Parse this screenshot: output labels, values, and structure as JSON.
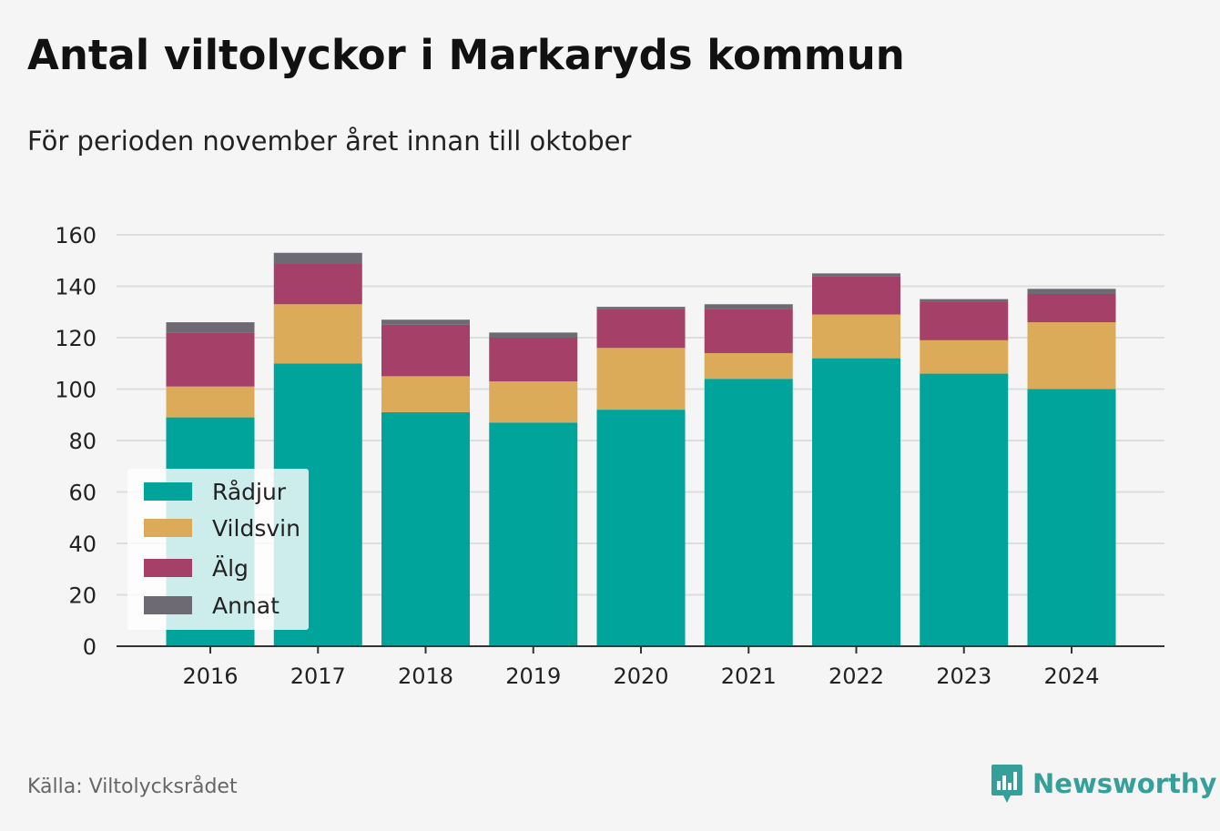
{
  "title": "Antal viltolyckor i Markaryds kommun",
  "subtitle": "För perioden november året innan till oktober",
  "source": "Källa: Viltolycksrådet",
  "brand": {
    "name": "Newsworthy",
    "icon": "chart-bars-icon",
    "color": "#35a09a"
  },
  "chart_data": {
    "type": "bar",
    "stacked": true,
    "categories": [
      "2016",
      "2017",
      "2018",
      "2019",
      "2020",
      "2021",
      "2022",
      "2023",
      "2024"
    ],
    "series": [
      {
        "name": "Rådjur",
        "color": "#00a49a",
        "values": [
          89,
          110,
          91,
          87,
          92,
          104,
          112,
          106,
          100
        ]
      },
      {
        "name": "Vildsvin",
        "color": "#dbab59",
        "values": [
          12,
          23,
          14,
          16,
          24,
          10,
          17,
          13,
          26
        ]
      },
      {
        "name": "Älg",
        "color": "#a54069",
        "values": [
          21,
          16,
          20,
          17,
          15,
          17,
          15,
          15,
          11
        ]
      },
      {
        "name": "Annat",
        "color": "#6d6a74",
        "values": [
          4,
          4,
          2,
          2,
          1,
          2,
          1,
          1,
          2
        ]
      }
    ],
    "yticks": [
      0,
      20,
      40,
      60,
      80,
      100,
      120,
      140,
      160
    ],
    "ylim": [
      0,
      160
    ],
    "xlabel": "",
    "ylabel": "",
    "grid": true,
    "legend_position": "bottom-left"
  }
}
